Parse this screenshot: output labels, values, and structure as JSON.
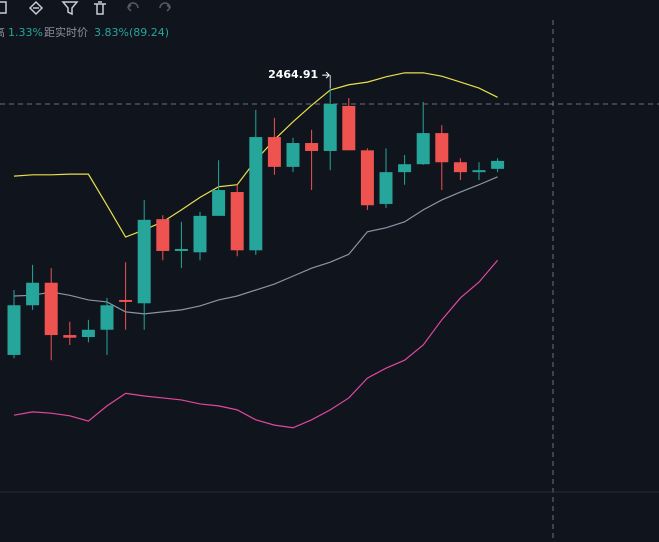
{
  "header": {
    "cut_label": "高",
    "change": "1.33%",
    "distance_label": "距实时价",
    "distance_value": "3.83%(89.24)"
  },
  "chart_data": {
    "type": "candlestick",
    "open": [
      2062,
      2137,
      2171,
      2092,
      2089,
      2100,
      2145,
      2140,
      2267,
      2219,
      2217,
      2272,
      2308,
      2220,
      2391,
      2346,
      2382,
      2370,
      2438,
      2371,
      2290,
      2338,
      2350,
      2397,
      2353,
      2338,
      2343
    ],
    "high": [
      2160,
      2198,
      2193,
      2112,
      2115,
      2148,
      2202,
      2296,
      2273,
      2263,
      2278,
      2356,
      2319,
      2432,
      2420,
      2390,
      2402,
      2464.91,
      2450,
      2374,
      2374,
      2364,
      2444,
      2409,
      2359,
      2353,
      2359
    ],
    "low": [
      2057,
      2130,
      2054,
      2077,
      2081,
      2062,
      2100,
      2100,
      2205,
      2193,
      2205,
      2272,
      2211,
      2213,
      2334,
      2338,
      2311,
      2341,
      2371,
      2281,
      2284,
      2319,
      2349,
      2311,
      2326,
      2326,
      2338
    ],
    "close": [
      2137,
      2171,
      2092,
      2088,
      2100,
      2137,
      2142,
      2266,
      2219,
      2222,
      2272,
      2311,
      2220,
      2391,
      2346,
      2382,
      2370,
      2441,
      2371,
      2288,
      2338,
      2350,
      2397,
      2353,
      2338,
      2341,
      2355
    ],
    "up_color": "#26a69a",
    "down_color": "#ef5350",
    "ylim": [
      1858,
      2598
    ],
    "series": [
      {
        "color": "#e8e04a",
        "values": [
          2332,
          2334,
          2334,
          2335,
          2335,
          2288,
          2240,
          2251,
          2263,
          2281,
          2300,
          2316,
          2319,
          2356,
          2387,
          2414,
          2439,
          2462,
          2470,
          2474,
          2482,
          2488,
          2488,
          2483,
          2474,
          2465,
          2451
        ]
      },
      {
        "color": "#8796a6",
        "values": [
          2151,
          2152,
          2157,
          2152,
          2145,
          2142,
          2127,
          2124,
          2127,
          2130,
          2136,
          2145,
          2151,
          2160,
          2169,
          2181,
          2193,
          2202,
          2214,
          2248,
          2254,
          2263,
          2281,
          2296,
          2308,
          2319,
          2331
        ]
      },
      {
        "color": "#e0489f",
        "values": [
          1971,
          1976,
          1974,
          1970,
          1962,
          1985,
          2004,
          2000,
          1997,
          1994,
          1988,
          1985,
          1979,
          1964,
          1956,
          1952,
          1964,
          1979,
          1997,
          2027,
          2042,
          2054,
          2077,
          2115,
          2148,
          2172,
          2205
        ]
      }
    ]
  }
}
